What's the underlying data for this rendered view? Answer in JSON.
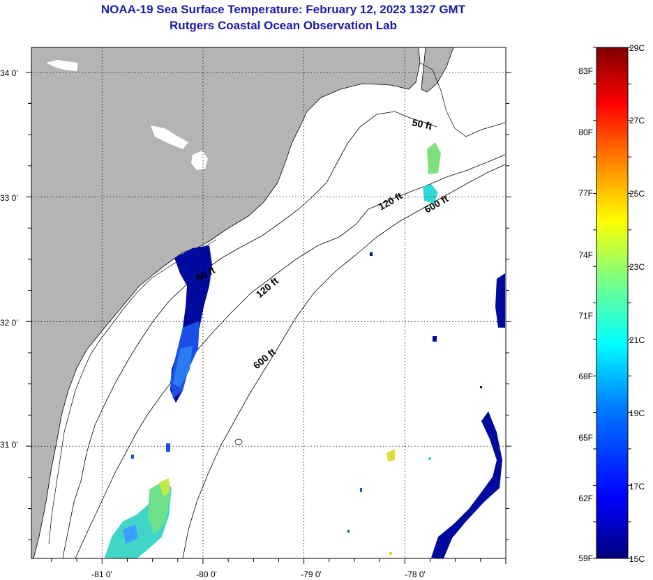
{
  "title": {
    "line1": "NOAA-19 Sea Surface Temperature:  February 12, 2023 1327 GMT",
    "line2": "Rutgers Coastal Ocean Observation Lab"
  },
  "map": {
    "lat_labels": [
      "34 0'",
      "33 0'",
      "32 0'",
      "31 0'"
    ],
    "lon_labels": [
      "-81 0'",
      "-80 0'",
      "-79 0'",
      "-78 0'"
    ],
    "lat_values": [
      34,
      33,
      32,
      31
    ],
    "lon_values": [
      -81,
      -80,
      -79,
      -78
    ],
    "lat_range": [
      30.1,
      34.2
    ],
    "lon_range": [
      -81.7,
      -77.0
    ],
    "land_color": "#b4b4b4",
    "grid": "dotted",
    "contour_labels": [
      "50 ft",
      "120 ft",
      "600 ft",
      "60 ft",
      "120 ft",
      "600 ft"
    ]
  },
  "colorbar": {
    "fahrenheit_labels": [
      "83F",
      "80F",
      "77F",
      "74F",
      "71F",
      "68F",
      "65F",
      "62F",
      "59F"
    ],
    "celsius_labels": [
      "29C",
      "27C",
      "25C",
      "23C",
      "21C",
      "19C",
      "17C",
      "15C"
    ],
    "range_c": [
      15,
      29
    ],
    "colors": [
      "#00007f",
      "#0000ff",
      "#007fff",
      "#00ffff",
      "#7fff7f",
      "#ffff00",
      "#ff7f00",
      "#ff0000",
      "#7f0000"
    ]
  }
}
